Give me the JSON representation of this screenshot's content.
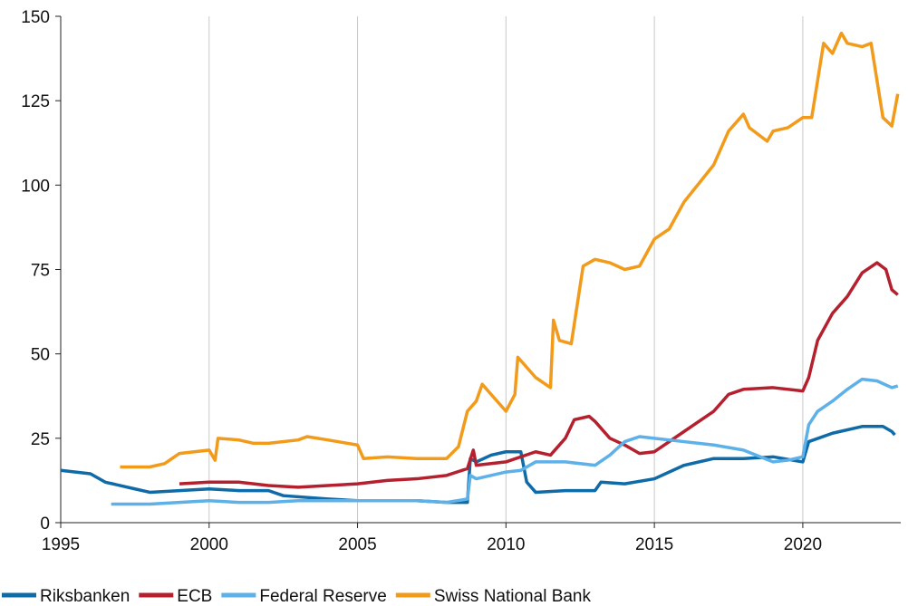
{
  "chart_data": {
    "type": "line",
    "xlim": [
      1995,
      2023.3
    ],
    "xticks": [
      1995,
      2000,
      2005,
      2010,
      2015,
      2020
    ],
    "ylim": [
      0,
      150
    ],
    "yticks": [
      0,
      25,
      50,
      75,
      100,
      125,
      150
    ],
    "grid": "x",
    "legend": "bottom-left",
    "series": [
      {
        "name": "Riksbanken",
        "color": "#0f6ba8",
        "x": [
          1995,
          1996,
          1996.5,
          1997.5,
          1998,
          1999,
          2000,
          2001,
          2002,
          2002.5,
          2004,
          2005,
          2006,
          2007,
          2008,
          2008.7,
          2008.8,
          2009,
          2009.5,
          2010,
          2010.5,
          2010.7,
          2011,
          2012,
          2013,
          2013.2,
          2014,
          2015,
          2016,
          2017,
          2018,
          2019,
          2020,
          2020.2,
          2021,
          2022,
          2022.7,
          2023,
          2023.1
        ],
        "values": [
          15.5,
          14.5,
          12,
          10,
          9,
          9.5,
          10,
          9.5,
          9.5,
          8,
          7,
          6.5,
          6.5,
          6.5,
          6,
          6,
          19,
          18,
          20,
          21,
          21,
          12,
          9,
          9.5,
          9.5,
          12,
          11.5,
          13,
          17,
          19,
          19,
          19.5,
          18,
          24,
          26.5,
          28.5,
          28.5,
          27,
          26
        ]
      },
      {
        "name": "ECB",
        "color": "#b5202e",
        "x": [
          1999,
          2000,
          2001,
          2002,
          2003,
          2004,
          2005,
          2006,
          2007,
          2008,
          2008.7,
          2008.9,
          2009,
          2010,
          2011,
          2011.5,
          2012,
          2012.3,
          2012.8,
          2013,
          2013.5,
          2014,
          2014.5,
          2015,
          2015.5,
          2016,
          2017,
          2017.5,
          2018,
          2019,
          2020,
          2020.2,
          2020.5,
          2021,
          2021.5,
          2022,
          2022.5,
          2022.8,
          2023,
          2023.2
        ],
        "values": [
          11.5,
          12,
          12,
          11,
          10.5,
          11,
          11.5,
          12.5,
          13,
          14,
          16,
          21.5,
          17,
          18,
          21,
          20,
          25,
          30.5,
          31.5,
          30,
          25,
          23,
          20.5,
          21,
          24,
          27,
          33,
          38,
          39.5,
          40,
          39,
          43,
          54,
          62,
          67,
          74,
          77,
          75,
          69,
          67.5
        ]
      },
      {
        "name": "Federal Reserve",
        "color": "#5db1e8",
        "x": [
          1996.7,
          1998,
          1999,
          2000,
          2001,
          2002,
          2003,
          2004,
          2005,
          2006,
          2007,
          2008,
          2008.7,
          2008.8,
          2009,
          2010,
          2010.5,
          2011,
          2012,
          2013,
          2013.5,
          2014,
          2014.5,
          2015,
          2016,
          2017,
          2018,
          2019,
          2019.5,
          2020,
          2020.2,
          2020.5,
          2021,
          2021.5,
          2022,
          2022.5,
          2023,
          2023.2
        ],
        "values": [
          5.5,
          5.5,
          6,
          6.5,
          6,
          6,
          6.5,
          6.5,
          6.5,
          6.5,
          6.5,
          6,
          7,
          14,
          13,
          15,
          15.5,
          18,
          18,
          17,
          20,
          24,
          25.5,
          25,
          24,
          23,
          21.5,
          18,
          18.5,
          19.5,
          29,
          33,
          36,
          39.5,
          42.5,
          42,
          40,
          40.5
        ]
      },
      {
        "name": "Swiss National Bank",
        "color": "#f29a1a",
        "x": [
          1997,
          1998,
          1998.5,
          1999,
          2000,
          2000.2,
          2000.3,
          2001,
          2001.5,
          2002,
          2003,
          2003.3,
          2004,
          2005,
          2005.2,
          2006,
          2007,
          2008,
          2008.4,
          2008.7,
          2009,
          2009.2,
          2009.5,
          2010,
          2010.3,
          2010.4,
          2011,
          2011.5,
          2011.6,
          2011.8,
          2012.2,
          2012.6,
          2013,
          2013.5,
          2014,
          2014.5,
          2015,
          2015.5,
          2016,
          2017,
          2017.5,
          2018,
          2018.2,
          2018.8,
          2019,
          2019.5,
          2020,
          2020.3,
          2020.5,
          2020.7,
          2021,
          2021.3,
          2021.5,
          2022,
          2022.3,
          2022.5,
          2022.7,
          2023,
          2023.2
        ],
        "values": [
          16.5,
          16.5,
          17.5,
          20.5,
          21.5,
          18.5,
          25,
          24.5,
          23.5,
          23.5,
          24.5,
          25.5,
          24.5,
          23,
          19,
          19.5,
          19,
          19,
          22.5,
          33,
          36,
          41,
          38,
          33,
          38,
          49,
          43,
          40,
          60,
          54,
          53,
          76,
          78,
          77,
          75,
          76,
          84,
          87,
          95,
          106,
          116,
          121,
          117,
          113,
          116,
          117,
          120,
          120,
          131,
          142,
          139,
          145,
          142,
          141,
          142,
          131,
          120,
          117.5,
          127
        ]
      }
    ]
  }
}
